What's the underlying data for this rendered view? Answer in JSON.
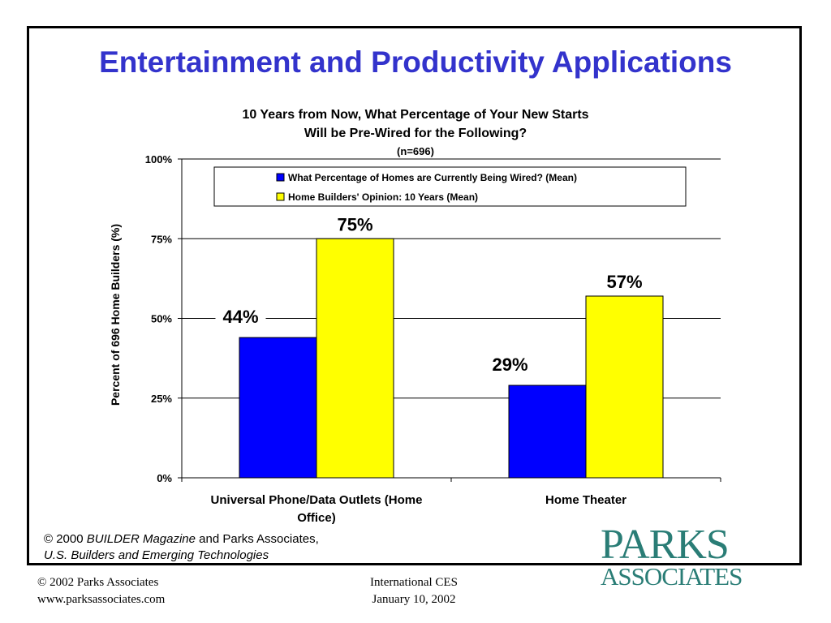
{
  "slide": {
    "title": "Entertainment and Productivity Applications"
  },
  "chart_data": {
    "type": "bar",
    "title_lines": [
      "10 Years from Now, What Percentage of Your New Starts",
      "Will be Pre-Wired for the Following?",
      "(n=696)"
    ],
    "ylabel": "Percent of 696 Home Builders (%)",
    "xlabel": "",
    "ylim": [
      0,
      100
    ],
    "yticks": [
      0,
      25,
      50,
      75,
      100
    ],
    "ytick_labels": [
      "0%",
      "25%",
      "50%",
      "75%",
      "100%"
    ],
    "grid": true,
    "legend_position": "top-right",
    "categories": [
      [
        "Universal Phone/Data Outlets (Home",
        "Office)"
      ],
      [
        "Home Theater"
      ]
    ],
    "series": [
      {
        "name": "What Percentage of Homes are Currently Being Wired? (Mean)",
        "color": "#0000ff",
        "values": [
          44,
          29
        ],
        "labels": [
          "44%",
          "29%"
        ]
      },
      {
        "name": "Home Builders' Opinion: 10 Years (Mean)",
        "color": "#ffff00",
        "values": [
          75,
          57
        ],
        "labels": [
          "75%",
          "57%"
        ]
      }
    ]
  },
  "source": {
    "line1_prefix": "© 2000 ",
    "line1_italic": "BUILDER Magazine",
    "line1_suffix": " and Parks Associates,",
    "line2": "U.S. Builders and Emerging Technologies"
  },
  "logo": {
    "line1": "PARKS",
    "line2": "ASSOCIATES"
  },
  "footer": {
    "left_line1": "© 2002 Parks Associates",
    "left_line2": "www.parksassociates.com",
    "mid_line1": "International CES",
    "mid_line2": "January 10, 2002"
  }
}
